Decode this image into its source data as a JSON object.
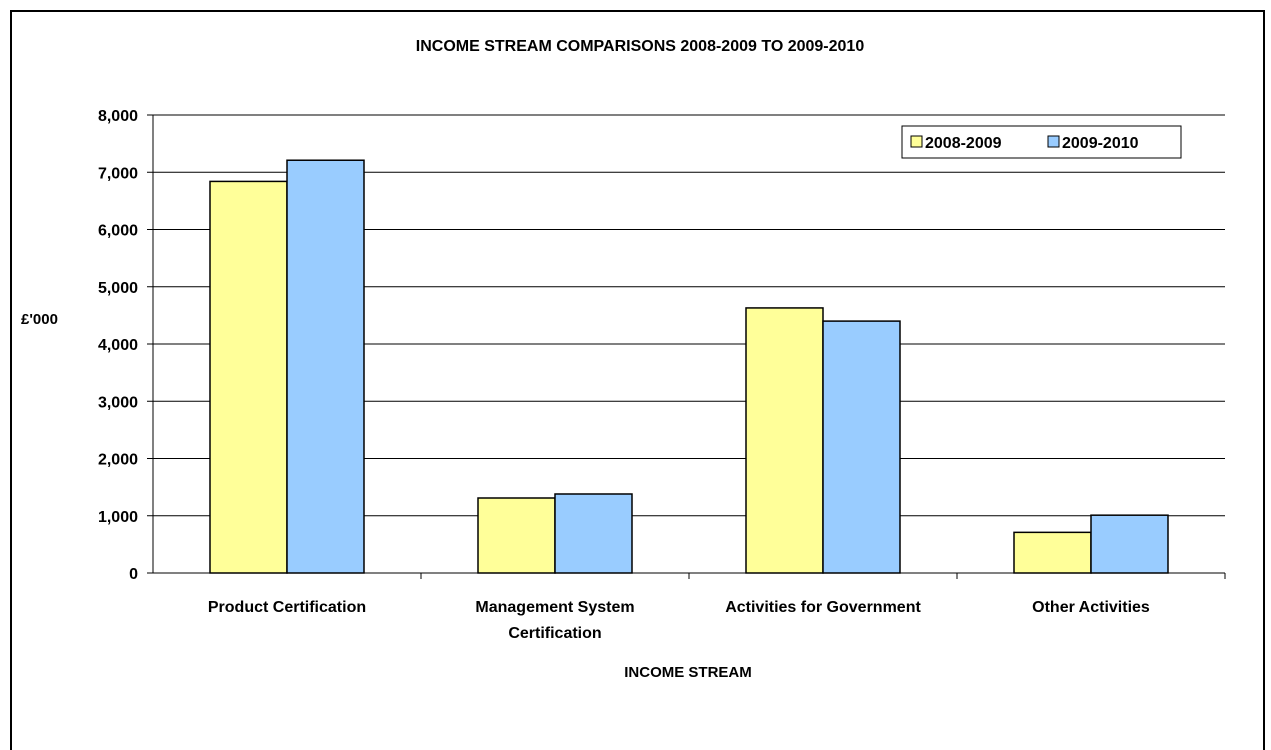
{
  "chart_data": {
    "type": "bar",
    "title": "INCOME STREAM COMPARISONS 2008-2009 TO 2009-2010",
    "xlabel": "INCOME STREAM",
    "ylabel": "£'000",
    "categories": [
      [
        "Product Certification"
      ],
      [
        "Management System",
        "Certification"
      ],
      [
        "Activities for Government"
      ],
      [
        "Other Activities"
      ]
    ],
    "series": [
      {
        "name": "2008-2009",
        "color": "#FFFF99",
        "values": [
          6840,
          1310,
          4630,
          710
        ]
      },
      {
        "name": "2009-2010",
        "color": "#99CCFF",
        "values": [
          7210,
          1380,
          4400,
          1010
        ]
      }
    ],
    "ylim": [
      0,
      8000
    ],
    "yticks": [
      0,
      1000,
      2000,
      3000,
      4000,
      5000,
      6000,
      7000,
      8000
    ],
    "ytick_labels": [
      "0",
      "1,000",
      "2,000",
      "3,000",
      "4,000",
      "5,000",
      "6,000",
      "7,000",
      "8,000"
    ],
    "grid": true,
    "legend_position": "top-right"
  }
}
